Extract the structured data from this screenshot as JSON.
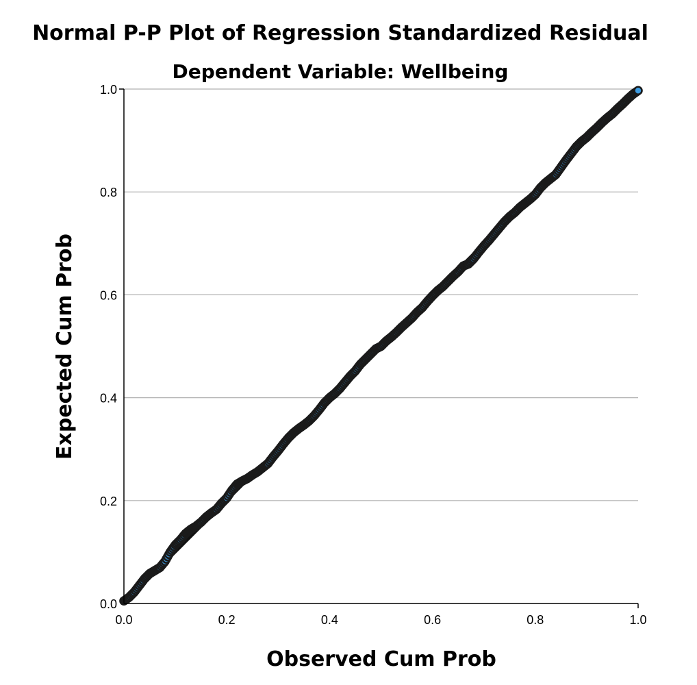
{
  "chart_data": {
    "type": "scatter",
    "title": "Normal P-P Plot of Regression Standardized Residual",
    "subtitle": "Dependent Variable: Wellbeing",
    "xlabel": "Observed Cum Prob",
    "ylabel": "Expected Cum Prob",
    "xlim": [
      0.0,
      1.0
    ],
    "ylim": [
      0.0,
      1.0
    ],
    "x_ticks": [
      "0.0",
      "0.2",
      "0.4",
      "0.6",
      "0.8",
      "1.0"
    ],
    "y_ticks": [
      "0.0",
      "0.2",
      "0.4",
      "0.6",
      "0.8",
      "1.0"
    ],
    "grid": "horizontal",
    "legend": "none",
    "point_fill_color": "#3d9be0",
    "point_stroke_color": "#1a1a1a",
    "gridline_color": "#b0b0b0",
    "reference_line": {
      "from": [
        0,
        0
      ],
      "to": [
        1,
        1
      ]
    },
    "series": [
      {
        "points": [
          [
            0.0,
            0.005
          ],
          [
            0.01,
            0.012
          ],
          [
            0.02,
            0.022
          ],
          [
            0.03,
            0.035
          ],
          [
            0.04,
            0.048
          ],
          [
            0.05,
            0.058
          ],
          [
            0.06,
            0.064
          ],
          [
            0.07,
            0.07
          ],
          [
            0.08,
            0.082
          ],
          [
            0.09,
            0.1
          ],
          [
            0.1,
            0.114
          ],
          [
            0.11,
            0.124
          ],
          [
            0.12,
            0.136
          ],
          [
            0.13,
            0.144
          ],
          [
            0.14,
            0.15
          ],
          [
            0.15,
            0.158
          ],
          [
            0.16,
            0.168
          ],
          [
            0.17,
            0.176
          ],
          [
            0.18,
            0.183
          ],
          [
            0.19,
            0.195
          ],
          [
            0.2,
            0.205
          ],
          [
            0.21,
            0.22
          ],
          [
            0.22,
            0.232
          ],
          [
            0.23,
            0.238
          ],
          [
            0.24,
            0.243
          ],
          [
            0.25,
            0.25
          ],
          [
            0.26,
            0.256
          ],
          [
            0.27,
            0.264
          ],
          [
            0.28,
            0.272
          ],
          [
            0.29,
            0.285
          ],
          [
            0.3,
            0.297
          ],
          [
            0.31,
            0.31
          ],
          [
            0.32,
            0.322
          ],
          [
            0.33,
            0.332
          ],
          [
            0.34,
            0.34
          ],
          [
            0.35,
            0.347
          ],
          [
            0.36,
            0.355
          ],
          [
            0.37,
            0.365
          ],
          [
            0.38,
            0.377
          ],
          [
            0.39,
            0.39
          ],
          [
            0.4,
            0.4
          ],
          [
            0.41,
            0.408
          ],
          [
            0.42,
            0.418
          ],
          [
            0.43,
            0.43
          ],
          [
            0.44,
            0.442
          ],
          [
            0.45,
            0.452
          ],
          [
            0.46,
            0.465
          ],
          [
            0.47,
            0.475
          ],
          [
            0.48,
            0.485
          ],
          [
            0.49,
            0.495
          ],
          [
            0.5,
            0.5
          ],
          [
            0.51,
            0.51
          ],
          [
            0.52,
            0.518
          ],
          [
            0.53,
            0.527
          ],
          [
            0.54,
            0.537
          ],
          [
            0.55,
            0.546
          ],
          [
            0.56,
            0.555
          ],
          [
            0.57,
            0.566
          ],
          [
            0.58,
            0.575
          ],
          [
            0.59,
            0.587
          ],
          [
            0.6,
            0.598
          ],
          [
            0.61,
            0.608
          ],
          [
            0.62,
            0.616
          ],
          [
            0.63,
            0.626
          ],
          [
            0.64,
            0.636
          ],
          [
            0.65,
            0.645
          ],
          [
            0.66,
            0.656
          ],
          [
            0.67,
            0.66
          ],
          [
            0.68,
            0.67
          ],
          [
            0.69,
            0.683
          ],
          [
            0.7,
            0.695
          ],
          [
            0.71,
            0.706
          ],
          [
            0.72,
            0.718
          ],
          [
            0.73,
            0.73
          ],
          [
            0.74,
            0.742
          ],
          [
            0.75,
            0.752
          ],
          [
            0.76,
            0.76
          ],
          [
            0.77,
            0.77
          ],
          [
            0.78,
            0.778
          ],
          [
            0.79,
            0.786
          ],
          [
            0.8,
            0.795
          ],
          [
            0.81,
            0.808
          ],
          [
            0.82,
            0.818
          ],
          [
            0.83,
            0.826
          ],
          [
            0.84,
            0.834
          ],
          [
            0.85,
            0.848
          ],
          [
            0.86,
            0.862
          ],
          [
            0.87,
            0.875
          ],
          [
            0.88,
            0.888
          ],
          [
            0.89,
            0.898
          ],
          [
            0.9,
            0.906
          ],
          [
            0.91,
            0.916
          ],
          [
            0.92,
            0.925
          ],
          [
            0.93,
            0.935
          ],
          [
            0.94,
            0.944
          ],
          [
            0.95,
            0.952
          ],
          [
            0.96,
            0.962
          ],
          [
            0.97,
            0.971
          ],
          [
            0.98,
            0.981
          ],
          [
            0.99,
            0.99
          ],
          [
            1.0,
            0.997
          ]
        ]
      }
    ]
  }
}
